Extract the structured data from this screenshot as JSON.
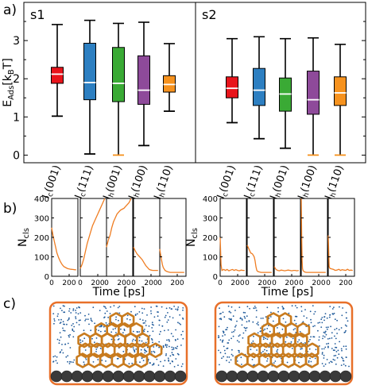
{
  "panel_labels": {
    "a": "a)",
    "b": "b)",
    "c": "c)"
  },
  "colors": {
    "red": "#e8141b",
    "blue": "#2d7fc1",
    "green": "#3aaa35",
    "purple": "#8e4a9a",
    "orange": "#f6921e",
    "trace": "#ef7d22",
    "frame": "#e8702a",
    "water": "#1f5a9a",
    "metal": "#3a3a3a",
    "cluster": "#c87b1e"
  },
  "chart_data": [
    {
      "type": "box",
      "subplot_title": "s1",
      "ylabel": "E",
      "ylabel_sub": "Ads",
      "ylabel_unit_pre": "[k",
      "ylabel_unit_sub": "B",
      "ylabel_unit_post": "T]",
      "ylim": [
        -0.2,
        4.0
      ],
      "yticks": [
        "0",
        "1",
        "2",
        "3"
      ],
      "grid": false,
      "categories": [
        {
          "main": "I",
          "sub": "c",
          "tail": "(001)",
          "color": "red"
        },
        {
          "main": "I",
          "sub": "c",
          "tail": "(111)",
          "color": "blue"
        },
        {
          "main": "I",
          "sub": "h",
          "tail": "(001)",
          "color": "green"
        },
        {
          "main": "I",
          "sub": "h",
          "tail": "(100)",
          "color": "purple"
        },
        {
          "main": "I",
          "sub": "h",
          "tail": "(110)",
          "color": "orange"
        }
      ],
      "boxes": [
        {
          "min": 1.02,
          "q1": 1.88,
          "median": 2.12,
          "q3": 2.3,
          "max": 3.42
        },
        {
          "min": 0.03,
          "q1": 1.45,
          "median": 1.9,
          "q3": 2.93,
          "max": 3.53
        },
        {
          "min": 0.0,
          "q1": 1.4,
          "median": 1.88,
          "q3": 2.82,
          "max": 3.45
        },
        {
          "min": 0.25,
          "q1": 1.33,
          "median": 1.7,
          "q3": 2.6,
          "max": 3.48
        },
        {
          "min": 1.15,
          "q1": 1.65,
          "median": 1.85,
          "q3": 2.08,
          "max": 2.92
        }
      ]
    },
    {
      "type": "box",
      "subplot_title": "s2",
      "ylim": [
        -0.2,
        4.0
      ],
      "grid": false,
      "categories": [
        {
          "main": "I",
          "sub": "c",
          "tail": "(001)",
          "color": "red"
        },
        {
          "main": "I",
          "sub": "c",
          "tail": "(111)",
          "color": "blue"
        },
        {
          "main": "I",
          "sub": "h",
          "tail": "(001)",
          "color": "green"
        },
        {
          "main": "I",
          "sub": "h",
          "tail": "(100)",
          "color": "purple"
        },
        {
          "main": "I",
          "sub": "h",
          "tail": "(110)",
          "color": "orange"
        }
      ],
      "boxes": [
        {
          "min": 0.85,
          "q1": 1.5,
          "median": 1.75,
          "q3": 2.05,
          "max": 3.05
        },
        {
          "min": 0.43,
          "q1": 1.3,
          "median": 1.7,
          "q3": 2.27,
          "max": 3.1
        },
        {
          "min": 0.18,
          "q1": 1.15,
          "median": 1.6,
          "q3": 2.02,
          "max": 3.05
        },
        {
          "min": 0.0,
          "q1": 1.07,
          "median": 1.45,
          "q3": 2.2,
          "max": 3.07
        },
        {
          "min": 0.0,
          "q1": 1.3,
          "median": 1.63,
          "q3": 2.05,
          "max": 2.9
        }
      ]
    },
    {
      "type": "line",
      "group": "s1",
      "ylabel": "N",
      "ylabel_sub": "cls",
      "xlabel": "Time [ps]",
      "xlim": [
        0,
        300
      ],
      "ylim": [
        0,
        400
      ],
      "yticks": [
        "0",
        "100",
        "200",
        "300",
        "400"
      ],
      "xticks": [
        "0",
        "200"
      ],
      "series": [
        {
          "x": [
            0,
            15,
            30,
            45,
            60,
            80,
            100,
            120,
            140,
            160,
            180,
            200,
            220,
            240,
            260,
            280
          ],
          "y": [
            250,
            210,
            180,
            150,
            120,
            95,
            75,
            60,
            50,
            45,
            40,
            38,
            36,
            35,
            34,
            33
          ]
        },
        {
          "x": [
            0,
            20,
            40,
            60,
            80,
            100,
            120,
            140,
            160,
            180,
            200,
            220,
            240,
            260,
            280
          ],
          "y": [
            40,
            60,
            90,
            130,
            170,
            200,
            230,
            260,
            280,
            300,
            320,
            340,
            360,
            380,
            400
          ]
        },
        {
          "x": [
            0,
            20,
            40,
            60,
            80,
            100,
            120,
            140,
            160,
            180,
            200,
            220,
            240,
            260,
            280
          ],
          "y": [
            150,
            185,
            210,
            250,
            280,
            300,
            320,
            330,
            340,
            345,
            350,
            360,
            370,
            380,
            400
          ]
        },
        {
          "x": [
            0,
            20,
            40,
            60,
            80,
            100,
            120,
            140,
            160,
            180,
            200,
            220,
            240,
            260,
            280
          ],
          "y": [
            150,
            130,
            115,
            105,
            95,
            85,
            70,
            55,
            45,
            35,
            32,
            30,
            30,
            30,
            30
          ]
        },
        {
          "x": [
            0,
            10,
            20,
            30,
            40,
            60,
            80,
            100,
            120,
            140,
            160,
            180,
            200,
            240,
            280
          ],
          "y": [
            140,
            110,
            85,
            60,
            45,
            30,
            25,
            22,
            20,
            20,
            20,
            20,
            20,
            20,
            20
          ]
        }
      ]
    },
    {
      "type": "line",
      "group": "s2",
      "ylabel": "N",
      "ylabel_sub": "cls",
      "xlabel": "Time [ps]",
      "xlim": [
        0,
        300
      ],
      "ylim": [
        0,
        400
      ],
      "yticks": [
        "0",
        "100",
        "200",
        "300",
        "400"
      ],
      "xticks": [
        "0",
        "200"
      ],
      "series": [
        {
          "x": [
            0,
            10,
            20,
            40,
            60,
            80,
            100,
            120,
            140,
            160,
            180,
            200,
            220,
            240,
            260,
            280
          ],
          "y": [
            200,
            60,
            30,
            35,
            30,
            35,
            28,
            32,
            35,
            30,
            34,
            30,
            28,
            32,
            30,
            30
          ]
        },
        {
          "x": [
            0,
            20,
            40,
            60,
            80,
            90,
            100,
            110,
            120,
            140,
            160,
            180,
            200,
            240,
            280
          ],
          "y": [
            160,
            140,
            120,
            115,
            100,
            80,
            50,
            30,
            25,
            22,
            20,
            20,
            20,
            20,
            20
          ]
        },
        {
          "x": [
            0,
            20,
            40,
            60,
            80,
            100,
            120,
            140,
            160,
            180,
            200,
            220,
            240,
            260,
            280
          ],
          "y": [
            50,
            35,
            30,
            28,
            32,
            30,
            28,
            30,
            32,
            30,
            28,
            30,
            30,
            28,
            30
          ]
        },
        {
          "x": [
            0,
            5,
            10,
            15,
            20,
            30,
            40,
            60,
            80,
            100,
            140,
            180,
            220,
            260,
            280
          ],
          "y": [
            400,
            200,
            80,
            40,
            30,
            25,
            22,
            20,
            20,
            20,
            20,
            20,
            20,
            20,
            20
          ]
        },
        {
          "x": [
            0,
            10,
            20,
            40,
            60,
            80,
            100,
            120,
            140,
            160,
            180,
            200,
            220,
            240,
            260,
            280
          ],
          "y": [
            210,
            50,
            40,
            38,
            35,
            30,
            32,
            36,
            30,
            34,
            32,
            30,
            36,
            30,
            32,
            30
          ]
        }
      ]
    }
  ],
  "snapshots": [
    {
      "name": "s1"
    },
    {
      "name": "s2"
    }
  ]
}
